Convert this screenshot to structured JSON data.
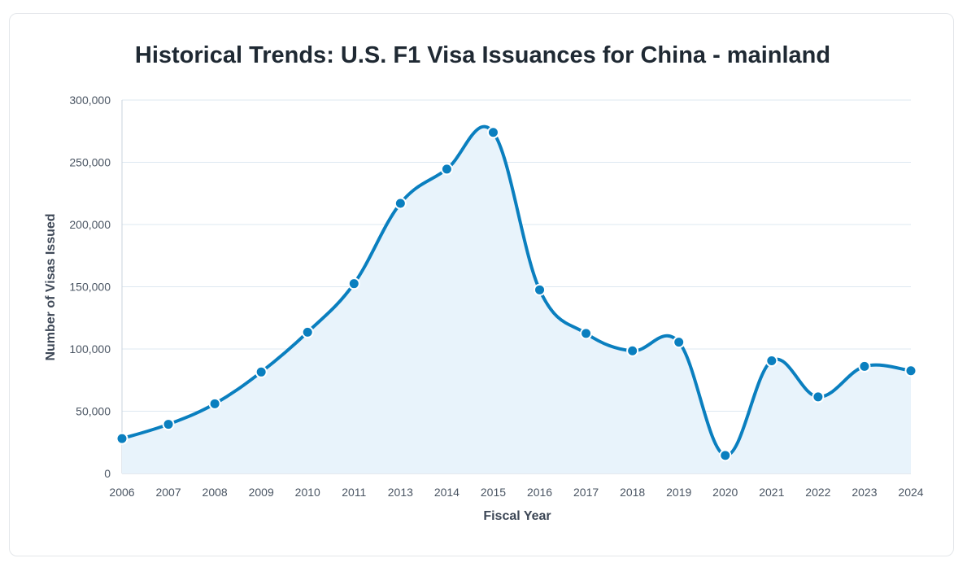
{
  "chart_data": {
    "type": "line",
    "title": "Historical Trends: U.S. F1 Visa Issuances for China - mainland",
    "xlabel": "Fiscal Year",
    "ylabel": "Number of Visas Issued",
    "categories": [
      "2006",
      "2007",
      "2008",
      "2009",
      "2010",
      "2011",
      "2013",
      "2014",
      "2015",
      "2016",
      "2017",
      "2018",
      "2019",
      "2020",
      "2021",
      "2022",
      "2023",
      "2024"
    ],
    "values": [
      28000,
      39500,
      56000,
      81500,
      113500,
      152500,
      217000,
      244500,
      274000,
      147500,
      112500,
      98500,
      105500,
      14500,
      90500,
      61500,
      86000,
      82500
    ],
    "ylim": [
      0,
      300000
    ],
    "yticks": [
      "0",
      "50,000",
      "100,000",
      "150,000",
      "200,000",
      "250,000",
      "300,000"
    ],
    "grid": true,
    "area_fill": true,
    "colors": {
      "line": "#0a7fbf",
      "fill": "#e8f3fb",
      "grid": "#dde8f1",
      "point_stroke": "#ffffff"
    }
  }
}
